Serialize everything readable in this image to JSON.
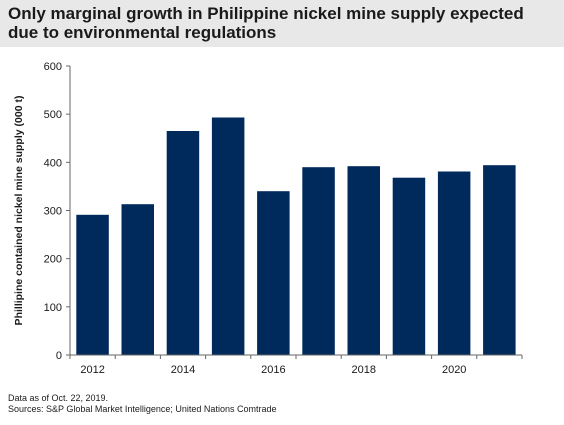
{
  "title": "Only marginal growth in Philippine nickel mine supply expected due to environmental regulations",
  "footer": {
    "note": "Data as of Oct. 22, 2019.",
    "sources": "Sources: S&P Global Market Intelligence; United Nations Comtrade"
  },
  "colors": {
    "bar": "#002a5c",
    "title_band": "#e8e8e8",
    "axis": "#666666"
  },
  "chart_data": {
    "type": "bar",
    "categories": [
      "2012",
      "2013",
      "2014",
      "2015",
      "2016",
      "2017",
      "2018",
      "2019",
      "2020",
      "2021"
    ],
    "tick_labels": [
      "2012",
      "",
      "2014",
      "",
      "2016",
      "",
      "2018",
      "",
      "2020",
      ""
    ],
    "values": [
      291,
      313,
      465,
      493,
      340,
      390,
      392,
      368,
      381,
      394
    ],
    "title": "Only marginal growth in Philippine nickel mine supply expected due to environmental regulations",
    "xlabel": "",
    "ylabel": "Phillipine contained nickel mine supply (000 t)",
    "ylim": [
      0,
      600
    ],
    "yticks": [
      0,
      100,
      200,
      300,
      400,
      500,
      600
    ],
    "grid": false,
    "legend": "none"
  }
}
